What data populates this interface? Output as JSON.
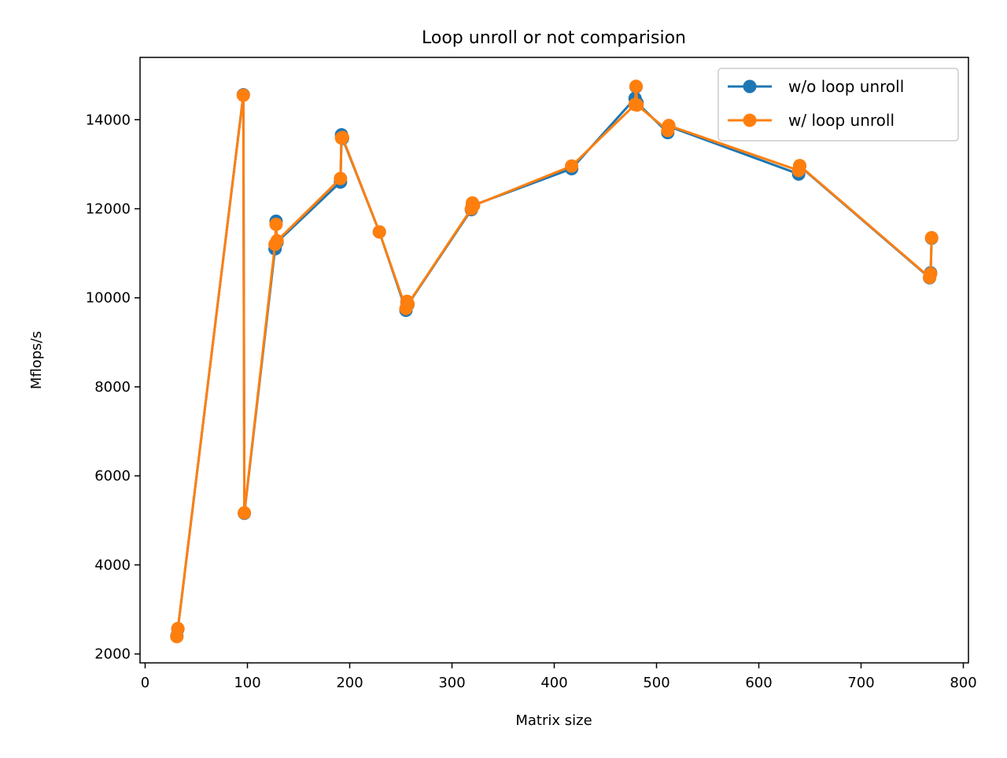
{
  "chart_data": {
    "type": "line",
    "title": "Loop unroll or not comparision",
    "xlabel": "Matrix size",
    "ylabel": "Mflops/s",
    "xlim": [
      -5,
      805
    ],
    "ylim": [
      1800,
      15400
    ],
    "xticks": [
      0,
      100,
      200,
      300,
      400,
      500,
      600,
      700,
      800
    ],
    "yticks": [
      2000,
      4000,
      6000,
      8000,
      10000,
      12000,
      14000
    ],
    "grid": false,
    "legend_position": "upper right",
    "series": [
      {
        "name": "w/o loop unroll",
        "color": "#1f77b4",
        "marker": "circle",
        "points": [
          [
            31,
            2400
          ],
          [
            32,
            2560
          ],
          [
            96,
            14560
          ],
          [
            97,
            5160
          ],
          [
            127,
            11100
          ],
          [
            128,
            11720
          ],
          [
            129,
            11250
          ],
          [
            191,
            12600
          ],
          [
            192,
            13660
          ],
          [
            193,
            13580
          ],
          [
            229,
            11480
          ],
          [
            255,
            9720
          ],
          [
            256,
            9900
          ],
          [
            257,
            9850
          ],
          [
            319,
            11980
          ],
          [
            320,
            12110
          ],
          [
            321,
            12080
          ],
          [
            417,
            12900
          ],
          [
            479,
            14480
          ],
          [
            480,
            14740
          ],
          [
            481,
            14380
          ],
          [
            511,
            13710
          ],
          [
            512,
            13850
          ],
          [
            639,
            12780
          ],
          [
            640,
            12960
          ],
          [
            767,
            10450
          ],
          [
            768,
            10560
          ],
          [
            769,
            11340
          ]
        ]
      },
      {
        "name": "w/ loop unroll",
        "color": "#ff7f0e",
        "marker": "circle",
        "points": [
          [
            31,
            2390
          ],
          [
            32,
            2570
          ],
          [
            96,
            14550
          ],
          [
            97,
            5170
          ],
          [
            127,
            11200
          ],
          [
            128,
            11650
          ],
          [
            129,
            11280
          ],
          [
            191,
            12680
          ],
          [
            192,
            13590
          ],
          [
            193,
            13600
          ],
          [
            229,
            11480
          ],
          [
            255,
            9760
          ],
          [
            256,
            9920
          ],
          [
            257,
            9860
          ],
          [
            319,
            12000
          ],
          [
            320,
            12130
          ],
          [
            321,
            12070
          ],
          [
            417,
            12960
          ],
          [
            479,
            14340
          ],
          [
            480,
            14750
          ],
          [
            481,
            14330
          ],
          [
            511,
            13760
          ],
          [
            512,
            13870
          ],
          [
            639,
            12860
          ],
          [
            640,
            12970
          ],
          [
            767,
            10460
          ],
          [
            768,
            10540
          ],
          [
            769,
            11350
          ]
        ]
      }
    ]
  }
}
